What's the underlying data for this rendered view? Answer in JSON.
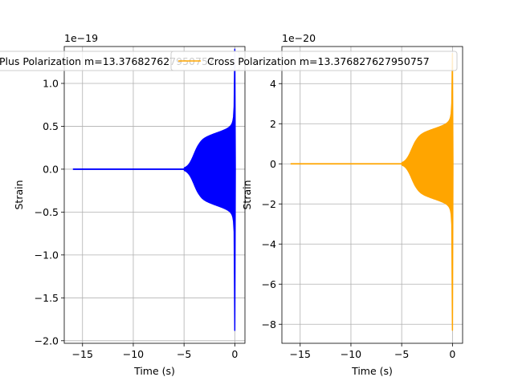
{
  "chart_data": [
    {
      "type": "line",
      "title": "",
      "xlabel": "Time (s)",
      "ylabel": "Strain",
      "offset_text": "1e−19",
      "xlim": [
        -16.8,
        1.0
      ],
      "ylim": [
        -2.03,
        1.43
      ],
      "grid": true,
      "legend_position": "top",
      "x_ticks": [
        -15,
        -10,
        -5,
        0
      ],
      "x_tick_labels": [
        "−15",
        "−10",
        "−5",
        "0"
      ],
      "y_ticks": [
        -2.0,
        -1.5,
        -1.0,
        -0.5,
        0.0,
        0.5,
        1.0
      ],
      "y_tick_labels": [
        "−2.0",
        "−1.5",
        "−1.0",
        "−0.5",
        "0.0",
        "0.5",
        "1.0"
      ],
      "series": [
        {
          "name": "Plus Polarization m=13.376827627950757",
          "color": "#0000ff",
          "x_range": [
            -15.9,
            0.05
          ],
          "onset": -5.0,
          "plateau": 0.35,
          "peak_max": 1.4,
          "peak_min": -1.88
        }
      ]
    },
    {
      "type": "line",
      "title": "",
      "xlabel": "Time (s)",
      "ylabel": "Strain",
      "offset_text": "1e−20",
      "xlim": [
        -16.8,
        1.0
      ],
      "ylim": [
        -8.95,
        5.85
      ],
      "grid": true,
      "legend_position": "top",
      "x_ticks": [
        -15,
        -10,
        -5,
        0
      ],
      "x_tick_labels": [
        "−15",
        "−10",
        "−5",
        "0"
      ],
      "y_ticks": [
        -8,
        -6,
        -4,
        -2,
        0,
        2,
        4
      ],
      "y_tick_labels": [
        "−8",
        "−6",
        "−4",
        "−2",
        "0",
        "2",
        "4"
      ],
      "series": [
        {
          "name": "Cross Polarization m=13.376827627950757",
          "color": "#ffa500",
          "x_range": [
            -15.9,
            0.05
          ],
          "onset": -5.0,
          "plateau": 1.45,
          "peak_max": 5.5,
          "peak_min": -8.3
        }
      ]
    }
  ]
}
